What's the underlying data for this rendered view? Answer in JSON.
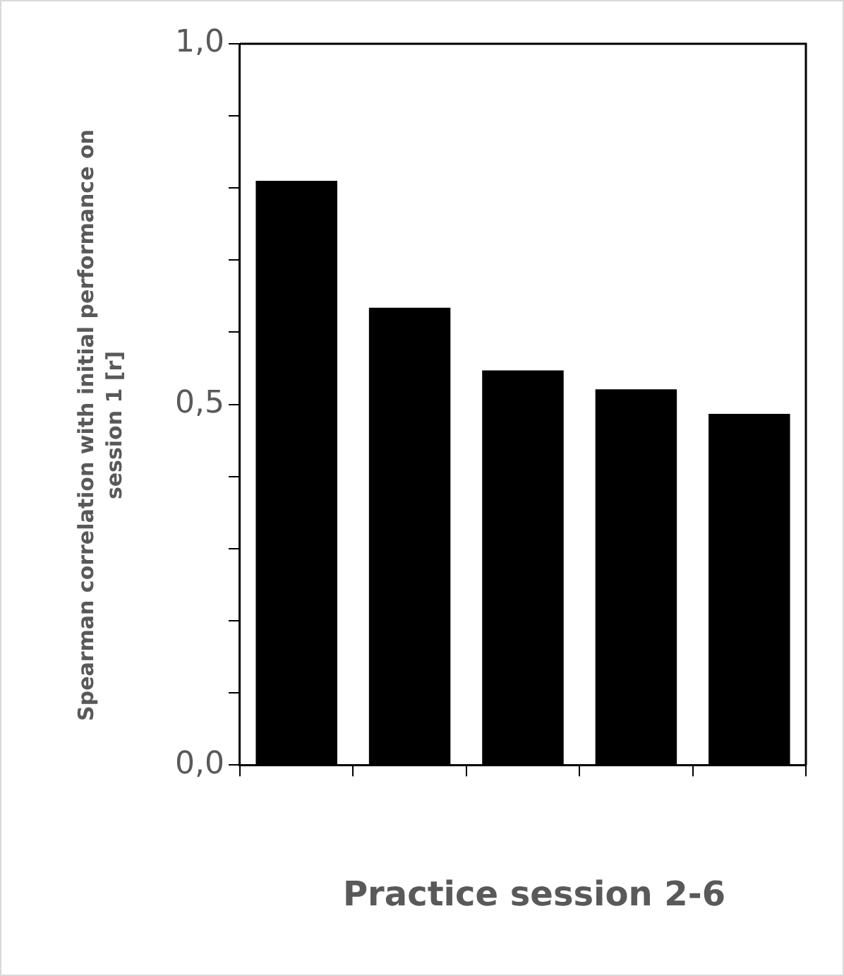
{
  "chart_data": {
    "type": "bar",
    "xlabel": "Practice session 2-6",
    "ylabel": "Spearman correlation with initial performance on session 1 [r]",
    "categories": [
      null,
      null,
      null,
      null,
      null
    ],
    "values": [
      0.81,
      0.634,
      0.547,
      0.521,
      0.487
    ],
    "color": "#000000",
    "ylim": [
      0,
      1
    ],
    "yticks": [
      {
        "value": 0,
        "label": "0,0"
      },
      {
        "value": 0.1,
        "label": null
      },
      {
        "value": 0.2,
        "label": null
      },
      {
        "value": 0.3,
        "label": null
      },
      {
        "value": 0.4,
        "label": null
      },
      {
        "value": 0.5,
        "label": "0,5"
      },
      {
        "value": 0.6,
        "label": null
      },
      {
        "value": 0.7,
        "label": null
      },
      {
        "value": 0.8,
        "label": null
      },
      {
        "value": 0.9,
        "label": null
      },
      {
        "value": 1,
        "label": "1,0"
      }
    ],
    "grid": false,
    "legend": false
  }
}
